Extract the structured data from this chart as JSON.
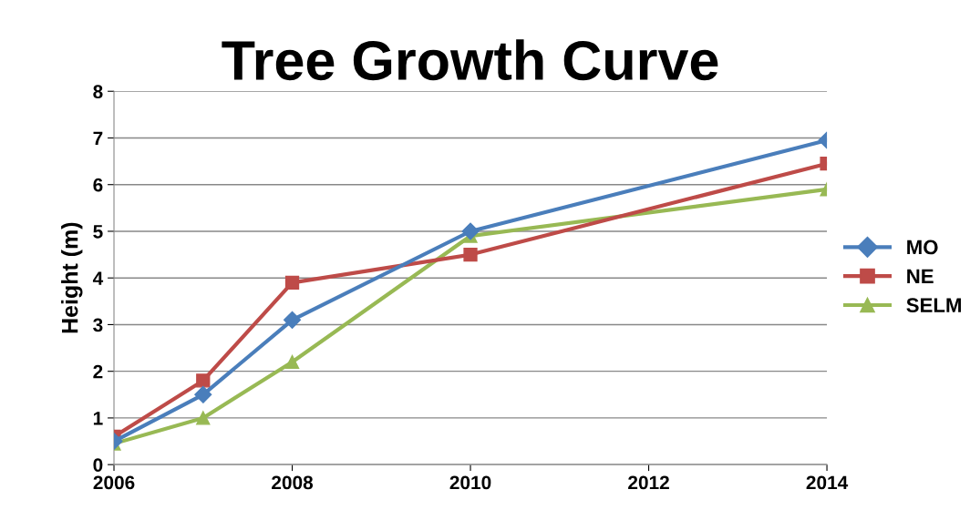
{
  "chart_data": {
    "type": "line",
    "title": "Tree Growth Curve",
    "ylabel": "Height (m)",
    "x": [
      2006,
      2007,
      2008,
      2010,
      2014
    ],
    "series": [
      {
        "name": "MO",
        "color": "#4a7ebb",
        "values": [
          0.5,
          1.5,
          3.1,
          5.0,
          6.95
        ],
        "marker": "diamond"
      },
      {
        "name": "NE",
        "color": "#be4b48",
        "values": [
          0.6,
          1.8,
          3.9,
          4.5,
          6.45
        ],
        "marker": "square"
      },
      {
        "name": "SELM",
        "color": "#98b954",
        "values": [
          0.45,
          1.0,
          2.2,
          4.9,
          5.9
        ],
        "marker": "triangle"
      }
    ],
    "xlim": [
      2006,
      2014
    ],
    "xticks": [
      2006,
      2008,
      2010,
      2012,
      2014
    ],
    "ylim": [
      0,
      8
    ],
    "yticks": [
      0,
      1,
      2,
      3,
      4,
      5,
      6,
      7,
      8
    ],
    "grid": "y",
    "legend": "right",
    "line_style": "solid"
  }
}
